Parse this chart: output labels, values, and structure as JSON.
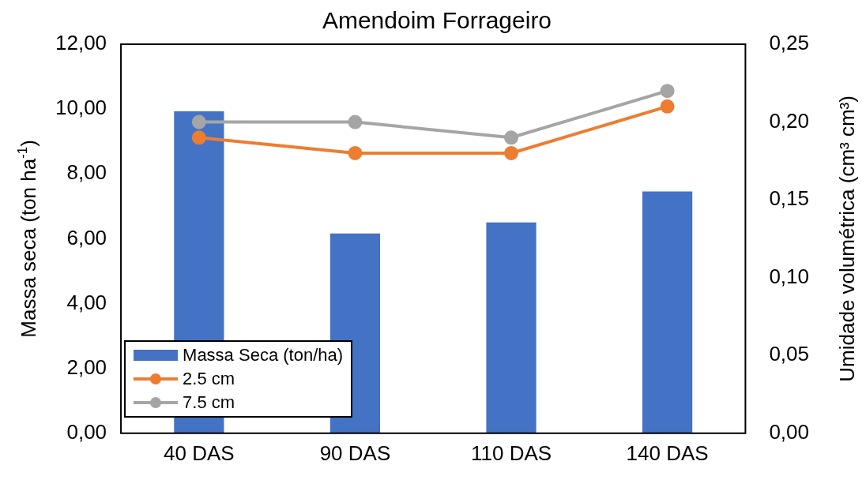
{
  "chart_data": {
    "type": "bar",
    "title": "Amendoim Forrageiro",
    "ylabel": "Massa seca (ton ha$^{-1}$)",
    "y2label": "Umidade volumétrica (cm³ cm³)",
    "categories": [
      "40 DAS",
      "90 DAS",
      "110 DAS",
      "140 DAS"
    ],
    "series": [
      {
        "name": "Massa Seca (ton/ha)",
        "color": "#4472c4",
        "values": [
          9.93,
          6.16,
          6.5,
          7.46
        ]
      },
      {
        "name": "2.5 cm",
        "type": "line",
        "axis": "y2",
        "color": "#ed7d31",
        "values": [
          0.19,
          0.18,
          0.18,
          0.21
        ]
      },
      {
        "name": "7.5 cm",
        "type": "line",
        "axis": "y2",
        "color": "#a5a5a5",
        "values": [
          0.2,
          0.2,
          0.19,
          0.22
        ]
      }
    ],
    "ylim": [
      0,
      12
    ],
    "yticks": [
      {
        "value": 0,
        "label": "0,00"
      },
      {
        "value": 2,
        "label": "2,00"
      },
      {
        "value": 4,
        "label": "4,00"
      },
      {
        "value": 6,
        "label": "6,00"
      },
      {
        "value": 8,
        "label": "8,00"
      },
      {
        "value": 10,
        "label": "10,00"
      },
      {
        "value": 12,
        "label": "12,00"
      }
    ],
    "y2lim": [
      0,
      0.25
    ],
    "y2ticks": [
      {
        "value": 0,
        "label": "0,00"
      },
      {
        "value": 0.05,
        "label": "0,05"
      },
      {
        "value": 0.1,
        "label": "0,10"
      },
      {
        "value": 0.15,
        "label": "0,15"
      },
      {
        "value": 0.2,
        "label": "0,20"
      },
      {
        "value": 0.25,
        "label": "0,25"
      }
    ],
    "legend": "bottom left",
    "marker": "circle",
    "line_style": "solid"
  }
}
